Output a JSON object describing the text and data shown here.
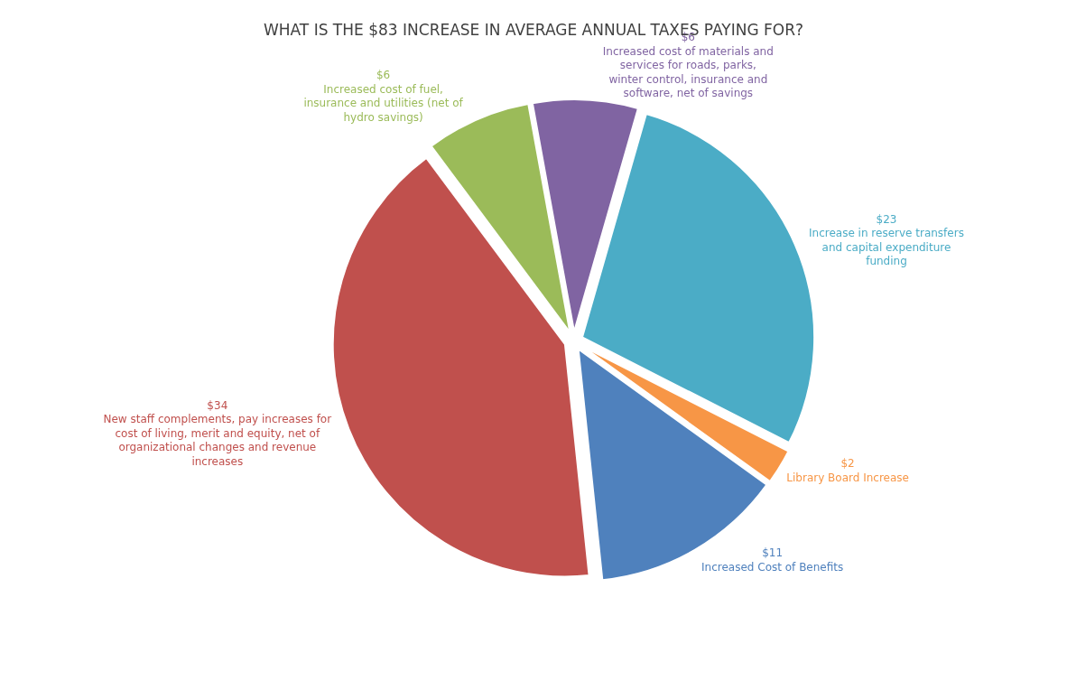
{
  "chart_data": {
    "type": "pie",
    "title": "WHAT IS THE $83 INCREASE IN AVERAGE ANNUAL TAXES PAYING FOR?",
    "categories": [
      "Increase in reserve transfers\nand capital expenditure\nfunding",
      "Library Board Increase",
      "Increased Cost of Benefits",
      "New staff complements, pay increases for\ncost of living, merit and equity, net of\norganizational changes and revenue\nincreases",
      "Increased cost of fuel,\ninsurance and utilities (net of\nhydro savings)",
      "Increased cost of materials and\nservices for roads, parks,\nwinter control, insurance and\nsoftware, net of savings"
    ],
    "values": [
      23,
      2,
      11,
      34,
      6,
      6
    ],
    "value_labels": [
      "$23",
      "$2",
      "$11",
      "$34",
      "$6",
      "$6"
    ],
    "colors": [
      "#4bacc6",
      "#f79646",
      "#4f81bd",
      "#c0504d",
      "#9bbb59",
      "#8064a2"
    ],
    "legend": false
  }
}
